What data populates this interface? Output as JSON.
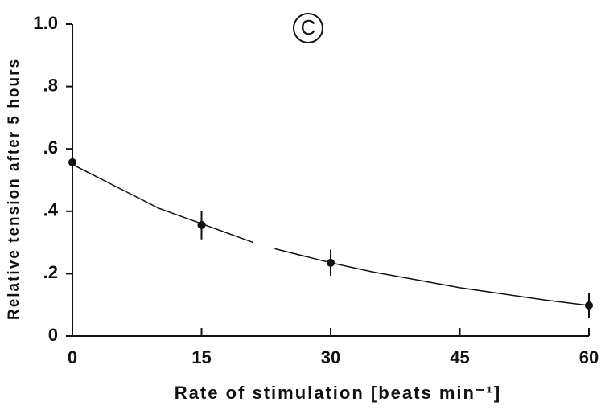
{
  "chart_data": {
    "type": "scatter",
    "annotation": "C",
    "xlabel": "Rate of stimulation [beats min⁻¹]",
    "ylabel": "Relative tension after 5 hours",
    "x": [
      0,
      15,
      30,
      60
    ],
    "values": [
      0.557,
      0.356,
      0.235,
      0.098
    ],
    "errors": [
      0.025,
      0.046,
      0.042,
      0.04
    ],
    "curve": {
      "x": [
        0,
        5,
        10,
        15,
        21,
        22,
        23.5,
        30,
        35,
        40,
        45,
        50,
        55,
        60
      ],
      "values": [
        0.55,
        0.48,
        0.41,
        0.36,
        0.3,
        null,
        0.28,
        0.235,
        0.205,
        0.18,
        0.155,
        0.135,
        0.115,
        0.098
      ]
    },
    "color": "#111111",
    "xlim": [
      0,
      60
    ],
    "xticks": [
      0,
      15,
      30,
      45,
      60
    ],
    "ylim": [
      0,
      1
    ],
    "yticks": [
      0,
      {
        "value": 0.2,
        "label": ".2"
      },
      {
        "value": 0.4,
        "label": ".4"
      },
      {
        "value": 0.6,
        "label": ".6"
      },
      {
        "value": 0.8,
        "label": ".8"
      },
      {
        "value": 1,
        "label": "1.0"
      }
    ]
  }
}
